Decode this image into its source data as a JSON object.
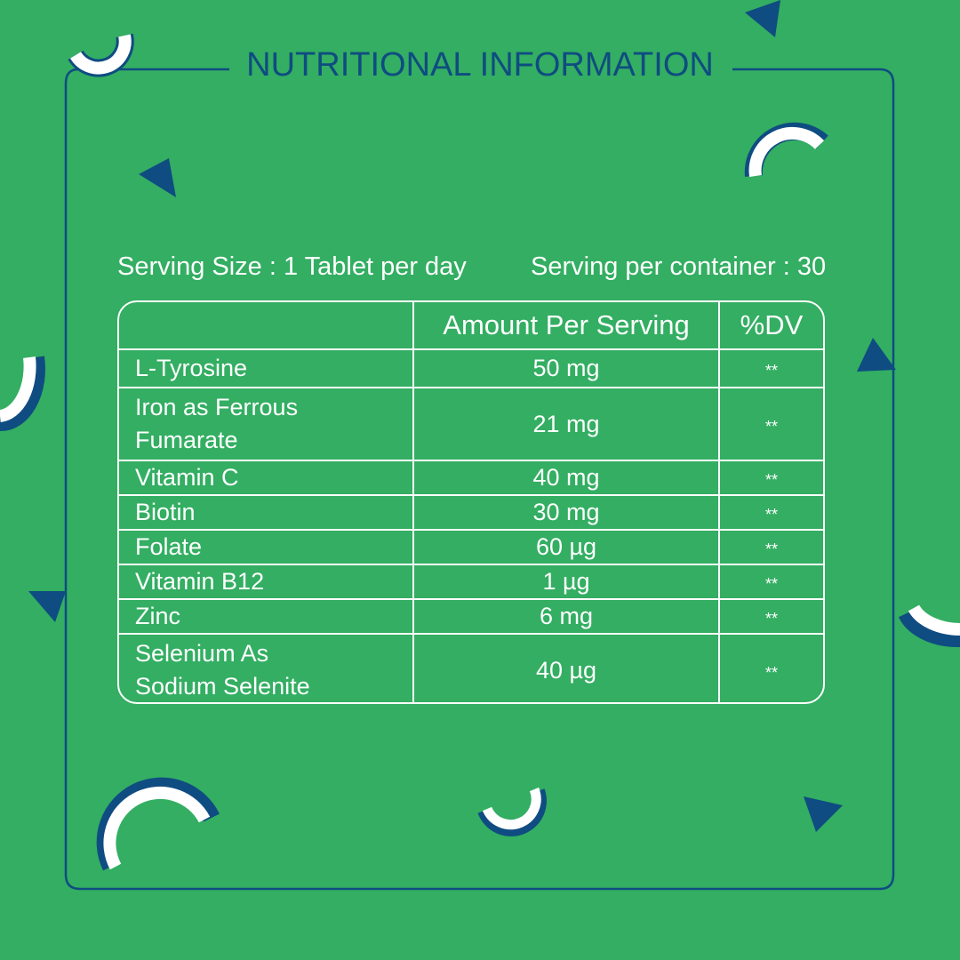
{
  "title": "NUTRITIONAL INFORMATION",
  "serving_size": "Serving Size : 1 Tablet per day",
  "serving_per_container": "Serving per container : 30",
  "table": {
    "header": [
      "",
      "Amount Per Serving",
      "%DV"
    ],
    "rows": [
      [
        "L-Tyrosine",
        "50 mg",
        "**"
      ],
      [
        "Iron as Ferrous Fumarate",
        "21 mg",
        "**"
      ],
      [
        "Vitamin C",
        "40 mg",
        "**"
      ],
      [
        "Biotin",
        "30 mg",
        "**"
      ],
      [
        "Folate",
        "60 µg",
        "**"
      ],
      [
        "Vitamin B12",
        "1 µg",
        "**"
      ],
      [
        "Zinc",
        "6 mg",
        "**"
      ],
      [
        "Selenium As Sodium Selenite",
        "40 µg",
        "**"
      ]
    ]
  }
}
